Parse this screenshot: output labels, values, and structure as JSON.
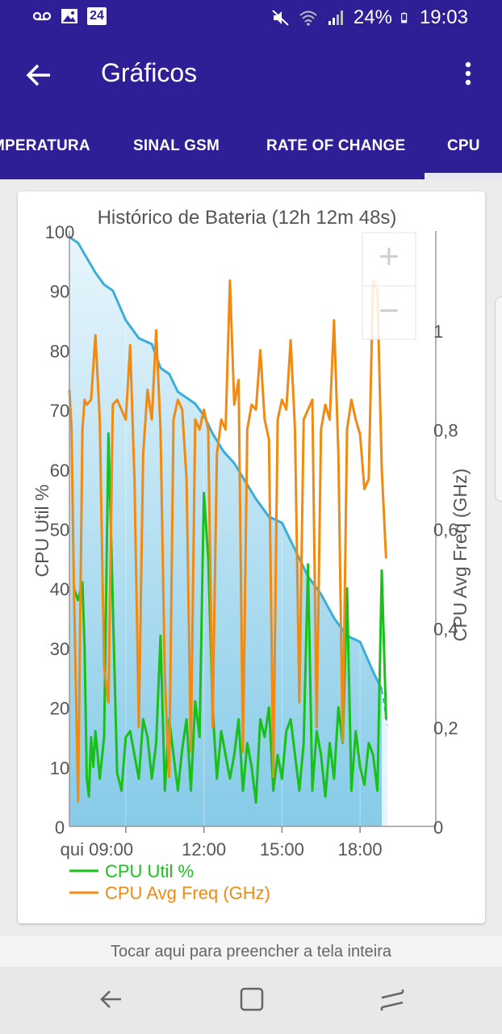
{
  "status_bar": {
    "calendar_day": "24",
    "battery": "24%",
    "time": "19:03",
    "icons": [
      "voicemail-icon",
      "image-icon",
      "calendar-icon",
      "mute-icon",
      "wifi-icon",
      "signal-icon",
      "battery-icon"
    ]
  },
  "app_bar": {
    "title": "Gráficos",
    "back_icon": "arrow-left-icon",
    "menu_icon": "more-vert-icon"
  },
  "tabs": [
    {
      "label": "MPERATURA",
      "selected": false
    },
    {
      "label": "SINAL GSM",
      "selected": false
    },
    {
      "label": "RATE OF CHANGE",
      "selected": false
    },
    {
      "label": "CPU",
      "selected": true
    }
  ],
  "zoom_controls": {
    "zoom_in": "+",
    "zoom_out": "−"
  },
  "footer": {
    "hint": "Tocar aqui para preencher a tela inteira"
  },
  "colors": {
    "primary": "#2e1f97",
    "cpu_util": "#19c01a",
    "cpu_freq": "#f08a12",
    "battery_line": "#3aaed8",
    "battery_fill_top": "#e6f5fc",
    "battery_fill_bottom": "#86cbe8"
  },
  "chart_data": {
    "type": "line",
    "title": "Histórico de Bateria (12h 12m 48s)",
    "ylabel_left": "CPU Util %",
    "ylabel_right": "CPU Avg Freq (GHz)",
    "x_range": [
      "06:50",
      "19:03"
    ],
    "x_ticks": [
      "qui 09:00",
      "12:00",
      "15:00",
      "18:00"
    ],
    "y_left_ticks": [
      "100",
      "90",
      "80",
      "70",
      "60",
      "50",
      "40",
      "30",
      "20",
      "10",
      "0"
    ],
    "y_left_range": [
      0,
      100
    ],
    "y_right_ticks": [
      "1",
      "0,8",
      "0,6",
      "0,4",
      "0,2",
      "0"
    ],
    "y_right_range": [
      0,
      1.2
    ],
    "legend": [
      "CPU Util %",
      "CPU Avg Freq (GHz)"
    ],
    "legend_position": "bottom-left",
    "battery_series": {
      "name": "Battery %",
      "x": [
        "06:50",
        "07:10",
        "07:50",
        "08:10",
        "08:30",
        "09:00",
        "09:30",
        "10:00",
        "10:20",
        "10:40",
        "11:00",
        "11:20",
        "11:40",
        "12:00",
        "12:20",
        "12:45",
        "13:10",
        "13:35",
        "14:00",
        "14:30",
        "15:00",
        "15:20",
        "15:40",
        "16:00",
        "16:30",
        "17:00",
        "17:30",
        "18:00",
        "18:30",
        "18:50",
        "19:03"
      ],
      "values": [
        99,
        98,
        93,
        91,
        90,
        85,
        82,
        81,
        77,
        76,
        73,
        72,
        71,
        69,
        66,
        63,
        61,
        58,
        55,
        52,
        51,
        48,
        45,
        42,
        39,
        35,
        32,
        31,
        26,
        23,
        17
      ],
      "projected_from_index": 29
    },
    "series": [
      {
        "name": "CPU Util %",
        "x": [
          "07:00",
          "07:10",
          "07:20",
          "07:25",
          "07:30",
          "07:35",
          "07:40",
          "07:45",
          "07:50",
          "08:00",
          "08:10",
          "08:20",
          "08:40",
          "08:50",
          "09:00",
          "09:10",
          "09:20",
          "09:30",
          "09:40",
          "09:50",
          "10:00",
          "10:10",
          "10:20",
          "10:30",
          "10:40",
          "10:50",
          "11:00",
          "11:10",
          "11:20",
          "11:30",
          "11:40",
          "11:50",
          "12:00",
          "12:10",
          "12:20",
          "12:30",
          "12:40",
          "12:50",
          "13:00",
          "13:10",
          "13:20",
          "13:30",
          "13:40",
          "13:50",
          "14:00",
          "14:10",
          "14:20",
          "14:30",
          "14:40",
          "14:50",
          "15:00",
          "15:10",
          "15:20",
          "15:30",
          "15:40",
          "15:50",
          "16:00",
          "16:10",
          "16:20",
          "16:30",
          "16:40",
          "16:50",
          "17:00",
          "17:10",
          "17:20",
          "17:30",
          "17:40",
          "17:50",
          "18:00",
          "18:10",
          "18:20",
          "18:30",
          "18:40",
          "18:50",
          "19:00"
        ],
        "values": [
          40,
          38,
          41,
          30,
          8,
          5,
          15,
          10,
          16,
          8,
          15,
          66,
          9,
          6,
          15,
          16,
          12,
          8,
          18,
          15,
          8,
          14,
          32,
          6,
          18,
          12,
          6,
          13,
          18,
          6,
          21,
          15,
          56,
          45,
          20,
          8,
          16,
          12,
          8,
          12,
          18,
          6,
          14,
          10,
          4,
          18,
          15,
          20,
          6,
          12,
          8,
          16,
          18,
          12,
          6,
          14,
          44,
          6,
          16,
          12,
          5,
          14,
          8,
          20,
          14,
          40,
          6,
          16,
          10,
          7,
          14,
          12,
          6,
          43,
          18
        ]
      },
      {
        "name": "CPU Avg Freq (GHz)",
        "x": [
          "06:50",
          "06:55",
          "07:00",
          "07:10",
          "07:20",
          "07:25",
          "07:30",
          "07:40",
          "07:50",
          "08:00",
          "08:10",
          "08:20",
          "08:30",
          "08:40",
          "08:50",
          "09:00",
          "09:10",
          "09:20",
          "09:30",
          "09:40",
          "09:50",
          "10:00",
          "10:10",
          "10:20",
          "10:30",
          "10:40",
          "10:50",
          "11:00",
          "11:10",
          "11:20",
          "11:30",
          "11:40",
          "11:50",
          "12:00",
          "12:10",
          "12:20",
          "12:30",
          "12:40",
          "12:50",
          "13:00",
          "13:10",
          "13:20",
          "13:30",
          "13:40",
          "13:50",
          "14:00",
          "14:10",
          "14:20",
          "14:30",
          "14:40",
          "14:50",
          "15:00",
          "15:10",
          "15:20",
          "15:30",
          "15:40",
          "15:50",
          "16:00",
          "16:10",
          "16:20",
          "16:30",
          "16:40",
          "16:50",
          "17:00",
          "17:10",
          "17:20",
          "17:30",
          "17:40",
          "17:50",
          "18:00",
          "18:10",
          "18:20",
          "18:30",
          "18:40",
          "18:50",
          "19:00"
        ],
        "values": [
          0.88,
          0.8,
          0.5,
          0.05,
          0.8,
          0.86,
          0.85,
          0.86,
          0.99,
          0.82,
          0.32,
          0.25,
          0.85,
          0.86,
          0.84,
          0.82,
          0.97,
          0.7,
          0.2,
          0.75,
          0.88,
          0.82,
          1.0,
          0.8,
          0.3,
          0.1,
          0.82,
          0.86,
          0.84,
          0.7,
          0.15,
          0.82,
          0.8,
          0.84,
          0.8,
          0.2,
          0.75,
          0.82,
          0.8,
          1.1,
          0.85,
          0.9,
          0.15,
          0.8,
          0.85,
          0.84,
          0.96,
          0.82,
          0.78,
          0.1,
          0.82,
          0.86,
          0.84,
          0.98,
          0.8,
          0.25,
          0.82,
          0.84,
          0.86,
          0.2,
          0.8,
          0.85,
          0.82,
          1.02,
          0.75,
          0.17,
          0.8,
          0.86,
          0.82,
          0.79,
          0.68,
          0.7,
          1.1,
          1.08,
          0.72,
          0.54
        ]
      }
    ]
  }
}
